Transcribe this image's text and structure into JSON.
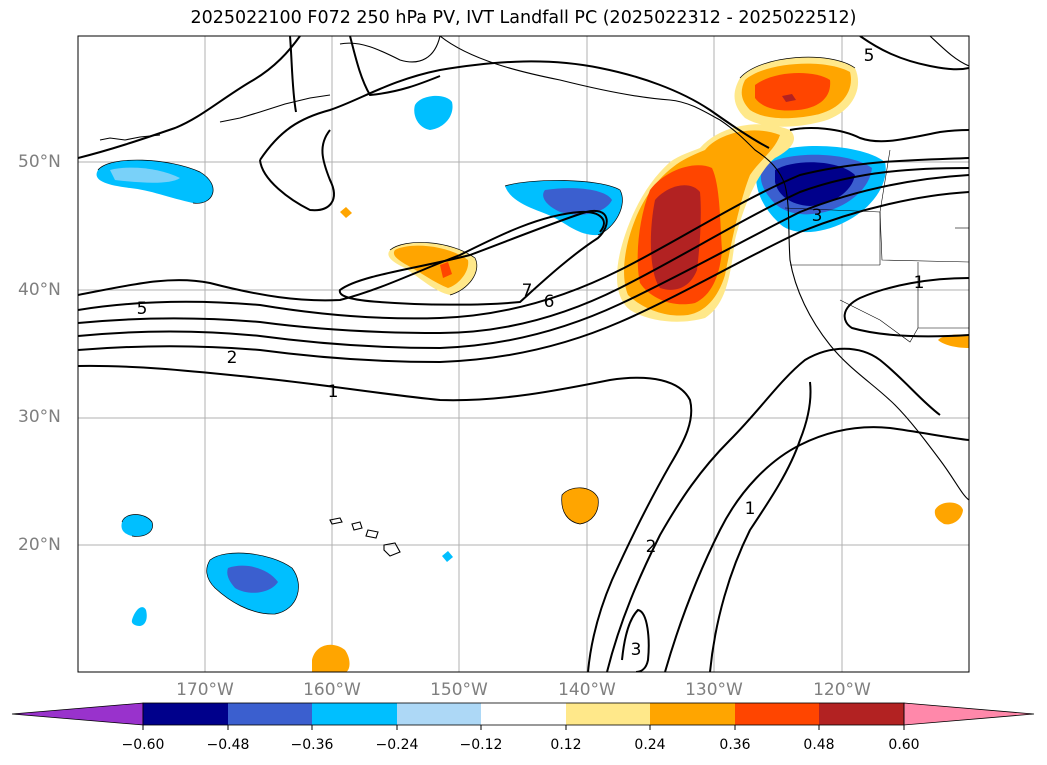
{
  "title": "2025022100 F072 250 hPa PV, IVT Landfall PC (2025022312 - 2025022512)",
  "lat_labels": [
    "50°N",
    "40°N",
    "30°N",
    "20°N"
  ],
  "lon_labels": [
    "170°W",
    "160°W",
    "150°W",
    "140°W",
    "130°W",
    "120°W"
  ],
  "contour_labels": [
    "5",
    "2",
    "1",
    "7",
    "6",
    "5",
    "1",
    "3",
    "2",
    "1",
    "3"
  ],
  "colorbar": {
    "ticks": [
      "−0.60",
      "−0.48",
      "−0.36",
      "−0.24",
      "−0.12",
      "0.12",
      "0.24",
      "0.36",
      "0.48",
      "0.60"
    ],
    "colors": [
      "#9932cc",
      "#00008b",
      "#3b5fcf",
      "#00bfff",
      "#add8f6",
      "#ffffff",
      "#ffe88a",
      "#ffa500",
      "#ff4500",
      "#b22222",
      "#ff88aa"
    ]
  },
  "colors": {
    "grid": "#b0b0b0",
    "contour": "#000000",
    "axis_label": "#7f7f7f"
  }
}
